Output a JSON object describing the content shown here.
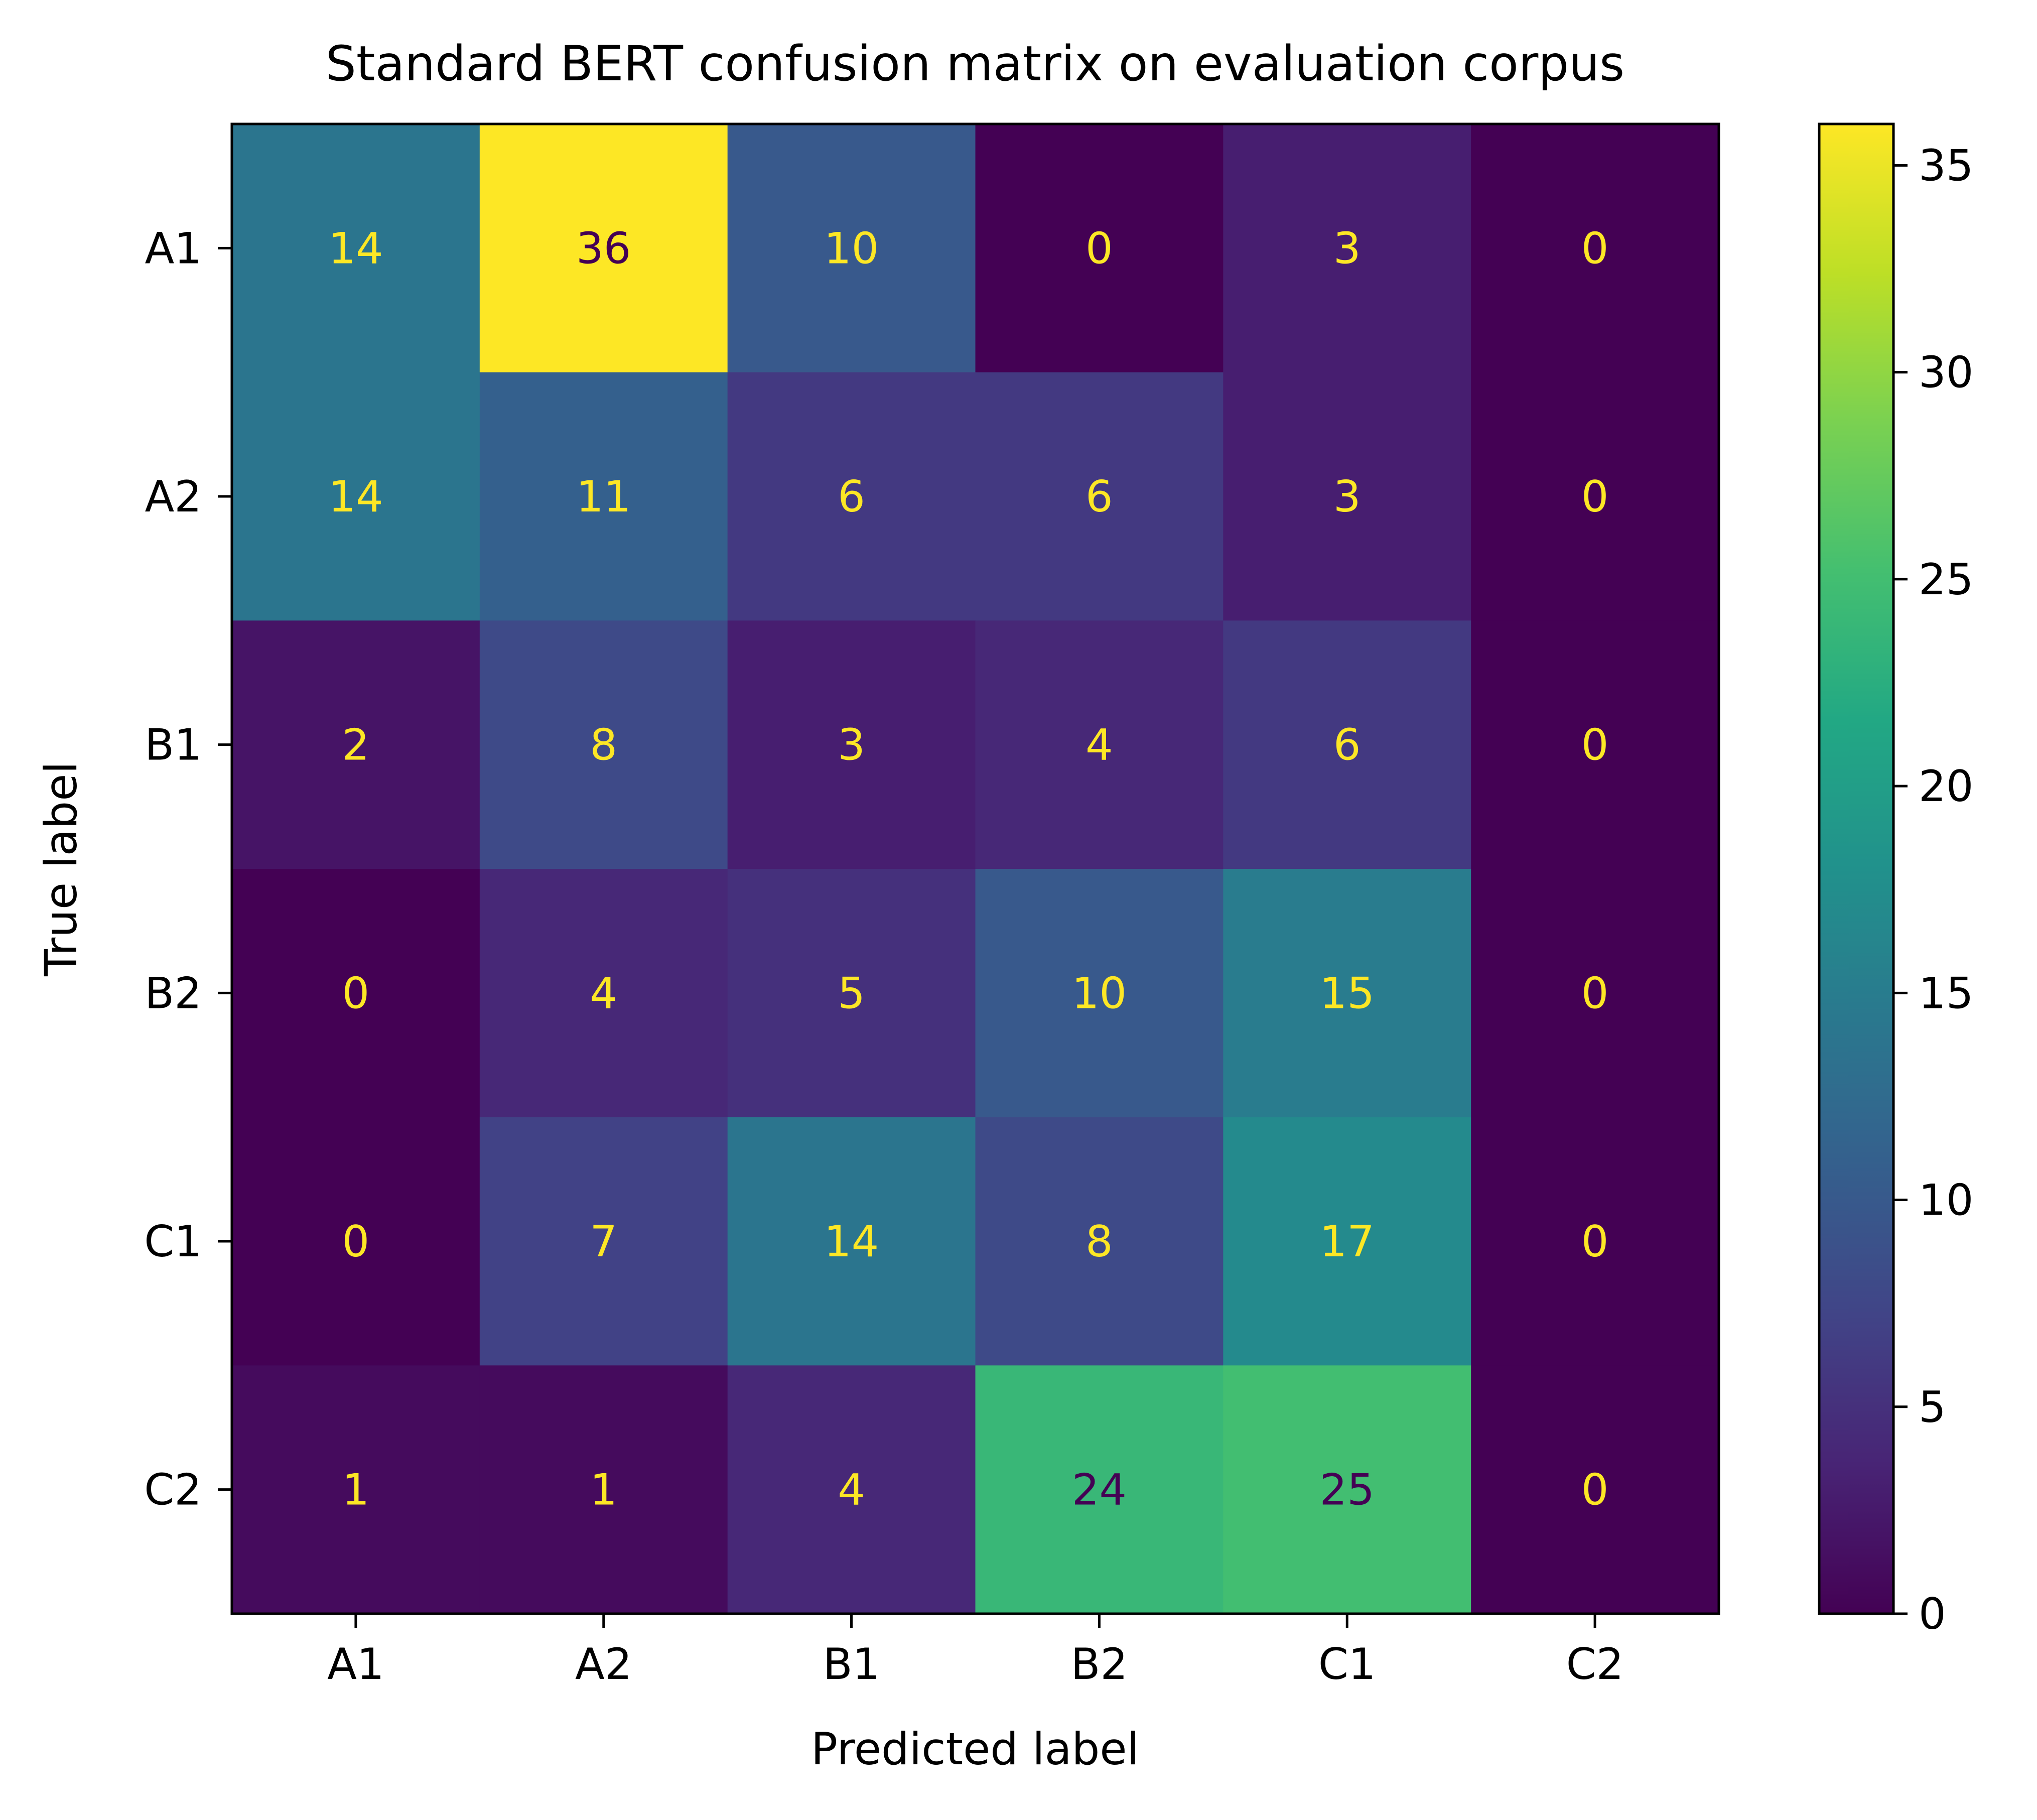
{
  "chart_data": {
    "type": "heatmap",
    "title": "Standard BERT confusion matrix on evaluation corpus",
    "xlabel": "Predicted label",
    "ylabel": "True label",
    "x_categories": [
      "A1",
      "A2",
      "B1",
      "B2",
      "C1",
      "C2"
    ],
    "y_categories": [
      "A1",
      "A2",
      "B1",
      "B2",
      "C1",
      "C2"
    ],
    "values": [
      [
        14,
        36,
        10,
        0,
        3,
        0
      ],
      [
        14,
        11,
        6,
        6,
        3,
        0
      ],
      [
        2,
        8,
        3,
        4,
        6,
        0
      ],
      [
        0,
        4,
        5,
        10,
        15,
        0
      ],
      [
        0,
        7,
        14,
        8,
        17,
        0
      ],
      [
        1,
        1,
        4,
        24,
        25,
        0
      ]
    ],
    "colorscale": "viridis",
    "color_range": [
      0,
      36
    ],
    "colorbar_ticks": [
      "0",
      "5",
      "10",
      "15",
      "20",
      "25",
      "30",
      "35"
    ],
    "cell_text_colors": {
      "on_dark": "#fde725",
      "on_light": "#440154"
    },
    "grid": false
  }
}
